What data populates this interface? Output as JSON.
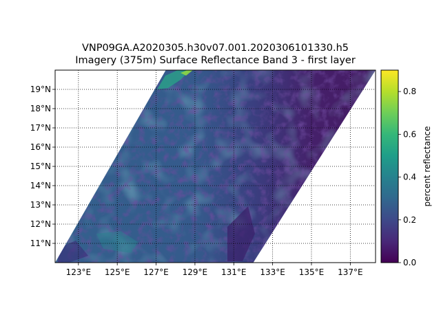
{
  "title": {
    "line1": "VNP09GA.A2020305.h30v07.001.2020306101330.h5",
    "line2": "Imagery (375m) Surface Reflectance Band 3 - first layer"
  },
  "map": {
    "projection": "plate carree",
    "lon_range": [
      121.8,
      138.3
    ],
    "lat_range": [
      10.0,
      20.0
    ],
    "lon_ticks": [
      {
        "value": 123,
        "label": "123°E"
      },
      {
        "value": 125,
        "label": "125°E"
      },
      {
        "value": 127,
        "label": "127°E"
      },
      {
        "value": 129,
        "label": "129°E"
      },
      {
        "value": 131,
        "label": "131°E"
      },
      {
        "value": 133,
        "label": "133°E"
      },
      {
        "value": 135,
        "label": "135°E"
      },
      {
        "value": 137,
        "label": "137°E"
      }
    ],
    "lat_ticks": [
      {
        "value": 11,
        "label": "11°N"
      },
      {
        "value": 12,
        "label": "12°N"
      },
      {
        "value": 13,
        "label": "13°N"
      },
      {
        "value": 14,
        "label": "14°N"
      },
      {
        "value": 15,
        "label": "15°N"
      },
      {
        "value": 16,
        "label": "16°N"
      },
      {
        "value": 17,
        "label": "17°N"
      },
      {
        "value": 18,
        "label": "18°N"
      },
      {
        "value": 19,
        "label": "19°N"
      }
    ],
    "gridlines": "dotted",
    "swath_corners": {
      "left_bottom": [
        121.8,
        10.0
      ],
      "left_top": [
        127.5,
        20.0
      ],
      "right_top": [
        138.3,
        20.0
      ],
      "right_bottom": [
        132.0,
        10.0
      ]
    }
  },
  "colorbar": {
    "colormap": "viridis",
    "range": [
      0.0,
      0.9
    ],
    "label": "percent reflectance",
    "ticks": [
      {
        "value": 0.0,
        "label": "0.0"
      },
      {
        "value": 0.2,
        "label": "0.2"
      },
      {
        "value": 0.4,
        "label": "0.4"
      },
      {
        "value": 0.6,
        "label": "0.6"
      },
      {
        "value": 0.8,
        "label": "0.8"
      }
    ],
    "stops": [
      "#440154",
      "#482878",
      "#3e4989",
      "#31688e",
      "#26828e",
      "#1f9e89",
      "#35b779",
      "#6ece58",
      "#b5de2b",
      "#fde725"
    ]
  }
}
